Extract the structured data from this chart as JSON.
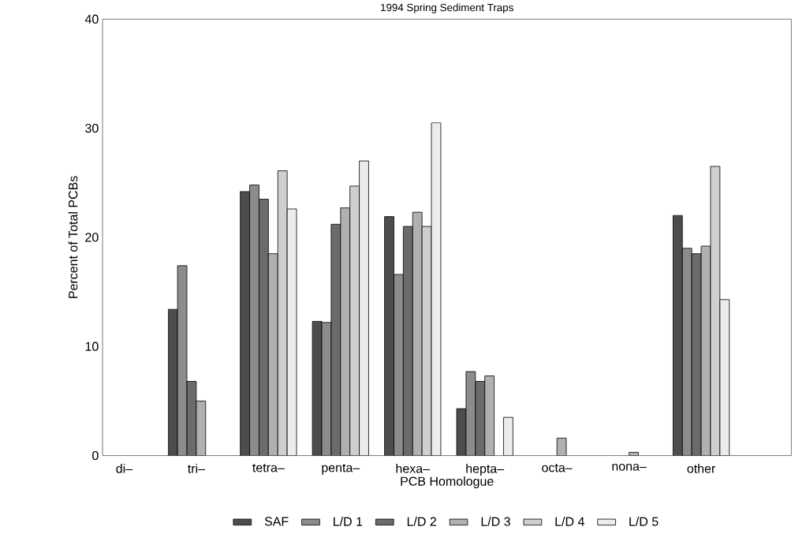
{
  "chart_data": {
    "type": "bar",
    "title": "1994 Spring Sediment Traps",
    "xlabel": "PCB Homologue",
    "ylabel": "Percent of Total PCBs",
    "categories": [
      "di–",
      "tri–",
      "tetra–",
      "penta–",
      "hexa–",
      "hepta–",
      "octa–",
      "nona–",
      "other"
    ],
    "series": [
      {
        "name": "SAF",
        "color": "#4d4d4d",
        "values": [
          null,
          13.4,
          24.2,
          12.3,
          21.9,
          4.3,
          null,
          null,
          22.0
        ]
      },
      {
        "name": "L/D 1",
        "color": "#8c8c8c",
        "values": [
          null,
          17.4,
          24.8,
          12.2,
          16.6,
          7.7,
          null,
          null,
          19.0
        ]
      },
      {
        "name": "L/D 2",
        "color": "#6b6b6b",
        "values": [
          null,
          6.8,
          23.5,
          21.2,
          21.0,
          6.8,
          null,
          null,
          18.5
        ]
      },
      {
        "name": "L/D 3",
        "color": "#b0b0b0",
        "values": [
          null,
          5.0,
          18.5,
          22.7,
          22.3,
          7.3,
          1.6,
          0.3,
          19.2
        ]
      },
      {
        "name": "L/D 4",
        "color": "#cfcfcf",
        "values": [
          null,
          null,
          26.1,
          24.7,
          21.0,
          null,
          null,
          null,
          26.5
        ]
      },
      {
        "name": "L/D 5",
        "color": "#ececec",
        "values": [
          null,
          null,
          22.6,
          27.0,
          30.5,
          3.5,
          null,
          null,
          14.3
        ]
      }
    ],
    "ylim": [
      0,
      40
    ],
    "yticks": [
      0,
      10,
      20,
      30,
      40
    ],
    "grid": false,
    "legend": "bottom"
  }
}
